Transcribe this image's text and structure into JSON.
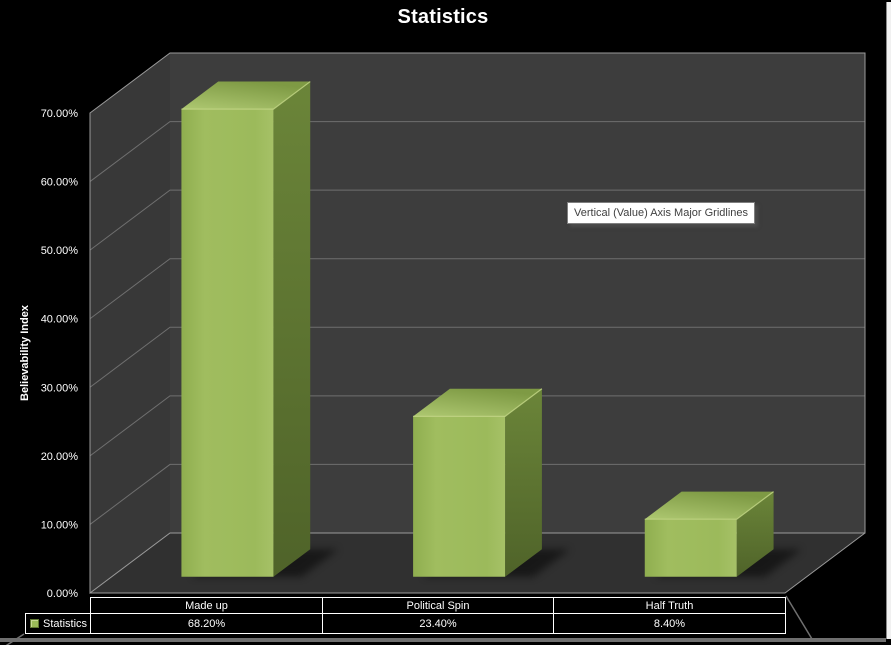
{
  "window": {
    "background_color": "#000000",
    "has_right_scrollbar": true
  },
  "tooltip": {
    "text": "Vertical (Value) Axis Major Gridlines"
  },
  "chart_data": {
    "type": "bar",
    "projection": "3d",
    "title": "Statistics",
    "categories": [
      "Made up",
      "Political Spin",
      "Half Truth"
    ],
    "series": [
      {
        "name": "Statistics",
        "values": [
          68.2,
          23.4,
          8.4
        ],
        "value_labels": [
          "68.20%",
          "23.40%",
          "8.40%"
        ]
      }
    ],
    "xlabel": "",
    "ylabel": "Believability Index",
    "ylim": [
      0,
      70
    ],
    "ytick_step": 10,
    "ytick_labels": [
      "0.00%",
      "10.00%",
      "20.00%",
      "30.00%",
      "40.00%",
      "50.00%",
      "60.00%",
      "70.00%"
    ],
    "grid": true,
    "legend": "shown-in-data-table",
    "colors": {
      "bar_front": "#9bbb59",
      "bar_top": "#8fae52",
      "bar_side": "#5f7731",
      "back_wall": "#3d3d3d",
      "side_wall": "#383838",
      "floor": "#303030",
      "gridline": "#6f6f6f",
      "wall_outline": "#9a9a9a",
      "text": "#ffffff",
      "background": "#000000"
    }
  }
}
